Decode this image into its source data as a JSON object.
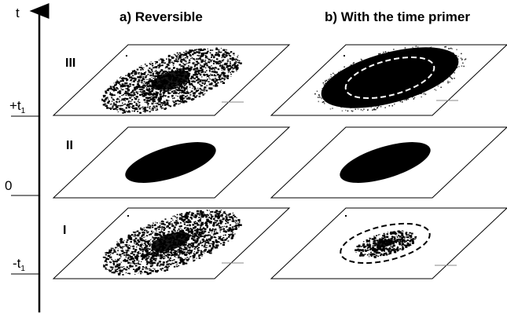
{
  "axis": {
    "label": "t",
    "ticks": [
      {
        "main": "+t",
        "sub": "1"
      },
      {
        "main": "0",
        "sub": ""
      },
      {
        "main": "-t",
        "sub": "1"
      }
    ]
  },
  "columns": [
    {
      "title": "a) Reversible"
    },
    {
      "title": "b) With the time primer"
    }
  ],
  "rows": [
    {
      "label": "III"
    },
    {
      "label": "II"
    },
    {
      "label": "I"
    }
  ],
  "colors": {
    "ink": "#000000",
    "background": "#ffffff",
    "dashed_outline": "#ffffff"
  }
}
